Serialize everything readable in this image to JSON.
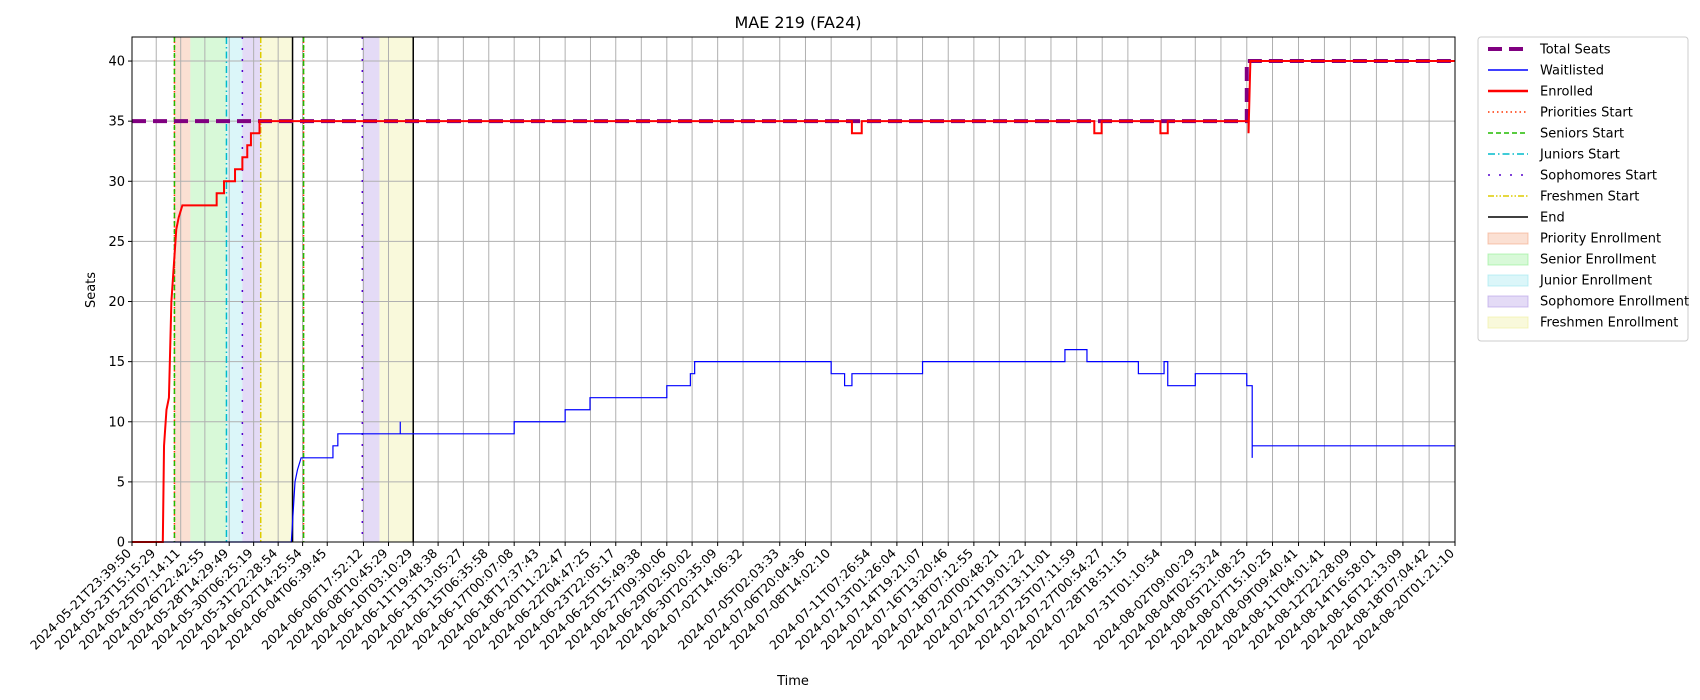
{
  "chart_data": {
    "type": "line",
    "title": "MAE 219 (FA24)",
    "xlabel": "Time",
    "ylabel": "Seats",
    "ylim": [
      0,
      42
    ],
    "yticks": [
      0,
      5,
      10,
      15,
      20,
      25,
      30,
      35,
      40
    ],
    "grid": true,
    "legend_position": "outside-right",
    "x_range": [
      "2024-05-21T23:39:50",
      "2024-08-20T01:21:10"
    ],
    "xticks": [
      "2024-05-21T23:39:50",
      "2024-05-23T15:15:29",
      "2024-05-25T07:14:11",
      "2024-05-26T22:42:55",
      "2024-05-28T14:29:49",
      "2024-05-30T06:25:19",
      "2024-05-31T22:28:54",
      "2024-06-02T14:25:54",
      "2024-06-04T06:39:45",
      "2024-06-06T17:52:12",
      "2024-06-08T10:45:29",
      "2024-06-10T03:10:29",
      "2024-06-11T19:48:38",
      "2024-06-13T13:05:27",
      "2024-06-15T06:35:58",
      "2024-06-17T00:07:08",
      "2024-06-18T17:37:43",
      "2024-06-20T11:22:47",
      "2024-06-22T04:47:25",
      "2024-06-23T22:05:17",
      "2024-06-25T15:49:38",
      "2024-06-27T09:30:06",
      "2024-06-29T02:50:02",
      "2024-06-30T20:35:09",
      "2024-07-02T14:06:32",
      "2024-07-05T02:03:33",
      "2024-07-06T20:04:36",
      "2024-07-08T14:02:10",
      "2024-07-11T07:26:54",
      "2024-07-13T01:26:04",
      "2024-07-14T19:21:07",
      "2024-07-16T13:20:46",
      "2024-07-18T07:12:55",
      "2024-07-20T00:48:21",
      "2024-07-21T19:01:22",
      "2024-07-23T13:11:01",
      "2024-07-25T07:11:59",
      "2024-07-27T00:54:27",
      "2024-07-28T18:51:15",
      "2024-07-31T01:10:54",
      "2024-08-02T09:00:29",
      "2024-08-04T02:53:24",
      "2024-08-05T21:08:25",
      "2024-08-07T15:10:25",
      "2024-08-09T09:40:41",
      "2024-08-11T04:01:41",
      "2024-08-12T22:28:09",
      "2024-08-14T16:58:01",
      "2024-08-16T12:13:09",
      "2024-08-18T07:04:42",
      "2024-08-20T01:21:10"
    ],
    "series": [
      {
        "name": "Total Seats",
        "color": "#800080",
        "style": "dashed",
        "points": [
          [
            "2024-05-21T23:39:50",
            35
          ],
          [
            "2024-08-05T21:08:25",
            35
          ],
          [
            "2024-08-05T21:08:25",
            40
          ],
          [
            "2024-08-20T01:21:10",
            40
          ]
        ]
      },
      {
        "name": "Waitlisted",
        "color": "#0000ff",
        "style": "solid",
        "points": [
          [
            "2024-05-21T23:39:50",
            0
          ],
          [
            "2024-06-01T20:00:00",
            0
          ],
          [
            "2024-06-02T02:00:00",
            5
          ],
          [
            "2024-06-02T06:00:00",
            6
          ],
          [
            "2024-06-02T12:00:00",
            7
          ],
          [
            "2024-06-04T16:00:00",
            7
          ],
          [
            "2024-06-04T16:00:00",
            8
          ],
          [
            "2024-06-05T00:00:00",
            8
          ],
          [
            "2024-06-05T00:00:00",
            9
          ],
          [
            "2024-06-09T06:00:00",
            9
          ],
          [
            "2024-06-09T06:00:00",
            10
          ],
          [
            "2024-06-09T06:00:00",
            9
          ],
          [
            "2024-06-17T00:07:08",
            9
          ],
          [
            "2024-06-17T00:07:08",
            10
          ],
          [
            "2024-06-20T11:22:47",
            10
          ],
          [
            "2024-06-20T11:22:47",
            11
          ],
          [
            "2024-06-22T04:00:00",
            11
          ],
          [
            "2024-06-22T04:00:00",
            12
          ],
          [
            "2024-06-27T09:30:06",
            12
          ],
          [
            "2024-06-27T09:30:06",
            13
          ],
          [
            "2024-06-29T00:00:00",
            13
          ],
          [
            "2024-06-29T00:00:00",
            14
          ],
          [
            "2024-06-29T07:00:00",
            14
          ],
          [
            "2024-06-29T07:00:00",
            15
          ],
          [
            "2024-07-08T14:02:10",
            15
          ],
          [
            "2024-07-08T14:02:10",
            14
          ],
          [
            "2024-07-09T12:00:00",
            14
          ],
          [
            "2024-07-09T12:00:00",
            13
          ],
          [
            "2024-07-10T00:00:00",
            13
          ],
          [
            "2024-07-10T00:00:00",
            14
          ],
          [
            "2024-07-14T19:21:07",
            14
          ],
          [
            "2024-07-14T19:21:07",
            15
          ],
          [
            "2024-07-24T12:00:00",
            15
          ],
          [
            "2024-07-24T12:00:00",
            16
          ],
          [
            "2024-07-26T00:00:00",
            16
          ],
          [
            "2024-07-26T00:00:00",
            15
          ],
          [
            "2024-07-29T12:00:00",
            15
          ],
          [
            "2024-07-29T12:00:00",
            14
          ],
          [
            "2024-07-31T06:00:00",
            14
          ],
          [
            "2024-07-31T06:00:00",
            15
          ],
          [
            "2024-07-31T12:00:00",
            15
          ],
          [
            "2024-07-31T12:00:00",
            13
          ],
          [
            "2024-08-02T09:00:29",
            13
          ],
          [
            "2024-08-02T09:00:29",
            14
          ],
          [
            "2024-08-05T21:08:25",
            14
          ],
          [
            "2024-08-05T21:08:25",
            13
          ],
          [
            "2024-08-06T06:00:00",
            13
          ],
          [
            "2024-08-06T06:00:00",
            7
          ],
          [
            "2024-08-06T06:00:00",
            8
          ],
          [
            "2024-08-20T01:21:10",
            8
          ]
        ]
      },
      {
        "name": "Enrolled",
        "color": "#ff0000",
        "style": "solid",
        "points": [
          [
            "2024-05-21T23:39:50",
            0
          ],
          [
            "2024-05-24T02:00:00",
            0
          ],
          [
            "2024-05-24T04:00:00",
            8
          ],
          [
            "2024-05-24T08:00:00",
            11
          ],
          [
            "2024-05-24T12:00:00",
            12
          ],
          [
            "2024-05-24T16:00:00",
            20
          ],
          [
            "2024-05-25T00:00:00",
            26
          ],
          [
            "2024-05-25T04:00:00",
            27
          ],
          [
            "2024-05-25T10:00:00",
            28
          ],
          [
            "2024-05-27T18:00:00",
            28
          ],
          [
            "2024-05-27T18:00:00",
            29
          ],
          [
            "2024-05-28T06:00:00",
            29
          ],
          [
            "2024-05-28T06:00:00",
            30
          ],
          [
            "2024-05-29T00:00:00",
            30
          ],
          [
            "2024-05-29T00:00:00",
            31
          ],
          [
            "2024-05-29T12:00:00",
            31
          ],
          [
            "2024-05-29T12:00:00",
            32
          ],
          [
            "2024-05-29T20:00:00",
            32
          ],
          [
            "2024-05-29T20:00:00",
            33
          ],
          [
            "2024-05-30T02:00:00",
            33
          ],
          [
            "2024-05-30T02:00:00",
            34
          ],
          [
            "2024-05-30T16:00:00",
            34
          ],
          [
            "2024-05-30T16:00:00",
            35
          ],
          [
            "2024-07-10T00:00:00",
            35
          ],
          [
            "2024-07-10T00:00:00",
            34
          ],
          [
            "2024-07-10T16:00:00",
            34
          ],
          [
            "2024-07-10T16:00:00",
            35
          ],
          [
            "2024-07-26T12:00:00",
            35
          ],
          [
            "2024-07-26T12:00:00",
            34
          ],
          [
            "2024-07-27T00:00:00",
            34
          ],
          [
            "2024-07-27T00:00:00",
            35
          ],
          [
            "2024-07-31T00:00:00",
            35
          ],
          [
            "2024-07-31T00:00:00",
            34
          ],
          [
            "2024-07-31T12:00:00",
            34
          ],
          [
            "2024-07-31T12:00:00",
            35
          ],
          [
            "2024-08-06T00:00:00",
            35
          ],
          [
            "2024-08-06T00:00:00",
            34
          ],
          [
            "2024-08-06T03:00:00",
            40
          ],
          [
            "2024-08-20T01:21:10",
            40
          ]
        ]
      }
    ],
    "vlines": [
      {
        "name": "Priorities Start",
        "color": "#ff3300",
        "style": "dotted",
        "x": "2024-05-24T21:00:00"
      },
      {
        "name": "Priorities Start",
        "color": "#ff3300",
        "style": "dotted",
        "x": "2024-06-02T16:00:00"
      },
      {
        "name": "Seniors Start",
        "color": "#22bb00",
        "style": "dashed",
        "x": "2024-05-24T21:00:00"
      },
      {
        "name": "Seniors Start",
        "color": "#22bb00",
        "style": "dashed",
        "x": "2024-06-02T16:00:00"
      },
      {
        "name": "Juniors Start",
        "color": "#00bbcc",
        "style": "dashdot",
        "x": "2024-05-28T10:00:00"
      },
      {
        "name": "Sophomores Start",
        "color": "#5500cc",
        "style": "loose",
        "x": "2024-05-29T12:00:00"
      },
      {
        "name": "Sophomores Start",
        "color": "#5500cc",
        "style": "loose",
        "x": "2024-06-06T16:00:00"
      },
      {
        "name": "Freshmen Start",
        "color": "#ddcc00",
        "style": "dashdotdot",
        "x": "2024-05-30T18:00:00"
      },
      {
        "name": "End",
        "color": "#000000",
        "style": "solid",
        "x": "2024-06-01T22:00:00"
      },
      {
        "name": "End",
        "color": "#000000",
        "style": "solid",
        "x": "2024-06-10T03:10:29"
      }
    ],
    "spans": [
      {
        "name": "Priority Enrollment",
        "color": "#f4a582",
        "start": "2024-05-24T21:00:00",
        "end": "2024-05-25T23:00:00"
      },
      {
        "name": "Senior Enrollment",
        "color": "#90ee90",
        "start": "2024-05-25T23:00:00",
        "end": "2024-05-28T10:00:00"
      },
      {
        "name": "Junior Enrollment",
        "color": "#99e6ee",
        "start": "2024-05-28T10:00:00",
        "end": "2024-05-29T12:00:00"
      },
      {
        "name": "Sophomore Enrollment",
        "color": "#b399e6",
        "start": "2024-05-29T12:00:00",
        "end": "2024-05-30T18:00:00"
      },
      {
        "name": "Freshmen Enrollment",
        "color": "#eeee99",
        "start": "2024-05-30T18:00:00",
        "end": "2024-06-01T22:00:00"
      },
      {
        "name": "Sophomore Enrollment",
        "color": "#b399e6",
        "start": "2024-06-06T16:00:00",
        "end": "2024-06-07T20:00:00"
      },
      {
        "name": "Freshmen Enrollment",
        "color": "#eeee99",
        "start": "2024-06-07T20:00:00",
        "end": "2024-06-10T03:10:29"
      }
    ],
    "legend": [
      {
        "label": "Total Seats",
        "kind": "line",
        "color": "#800080",
        "style": "thickdash"
      },
      {
        "label": "Waitlisted",
        "kind": "line",
        "color": "#0000ff",
        "style": "solid"
      },
      {
        "label": "Enrolled",
        "kind": "line",
        "color": "#ff0000",
        "style": "solidthick"
      },
      {
        "label": "Priorities Start",
        "kind": "line",
        "color": "#ff3300",
        "style": "dotted"
      },
      {
        "label": "Seniors Start",
        "kind": "line",
        "color": "#22bb00",
        "style": "dashed"
      },
      {
        "label": "Juniors Start",
        "kind": "line",
        "color": "#00bbcc",
        "style": "dashdot"
      },
      {
        "label": "Sophomores Start",
        "kind": "line",
        "color": "#5500cc",
        "style": "loose"
      },
      {
        "label": "Freshmen Start",
        "kind": "line",
        "color": "#ddcc00",
        "style": "dashdotdot"
      },
      {
        "label": "End",
        "kind": "line",
        "color": "#000000",
        "style": "solid"
      },
      {
        "label": "Priority Enrollment",
        "kind": "patch",
        "color": "#f4a582"
      },
      {
        "label": "Senior Enrollment",
        "kind": "patch",
        "color": "#90ee90"
      },
      {
        "label": "Junior Enrollment",
        "kind": "patch",
        "color": "#99e6ee"
      },
      {
        "label": "Sophomore Enrollment",
        "kind": "patch",
        "color": "#b399e6"
      },
      {
        "label": "Freshmen Enrollment",
        "kind": "patch",
        "color": "#eeee99"
      }
    ]
  }
}
